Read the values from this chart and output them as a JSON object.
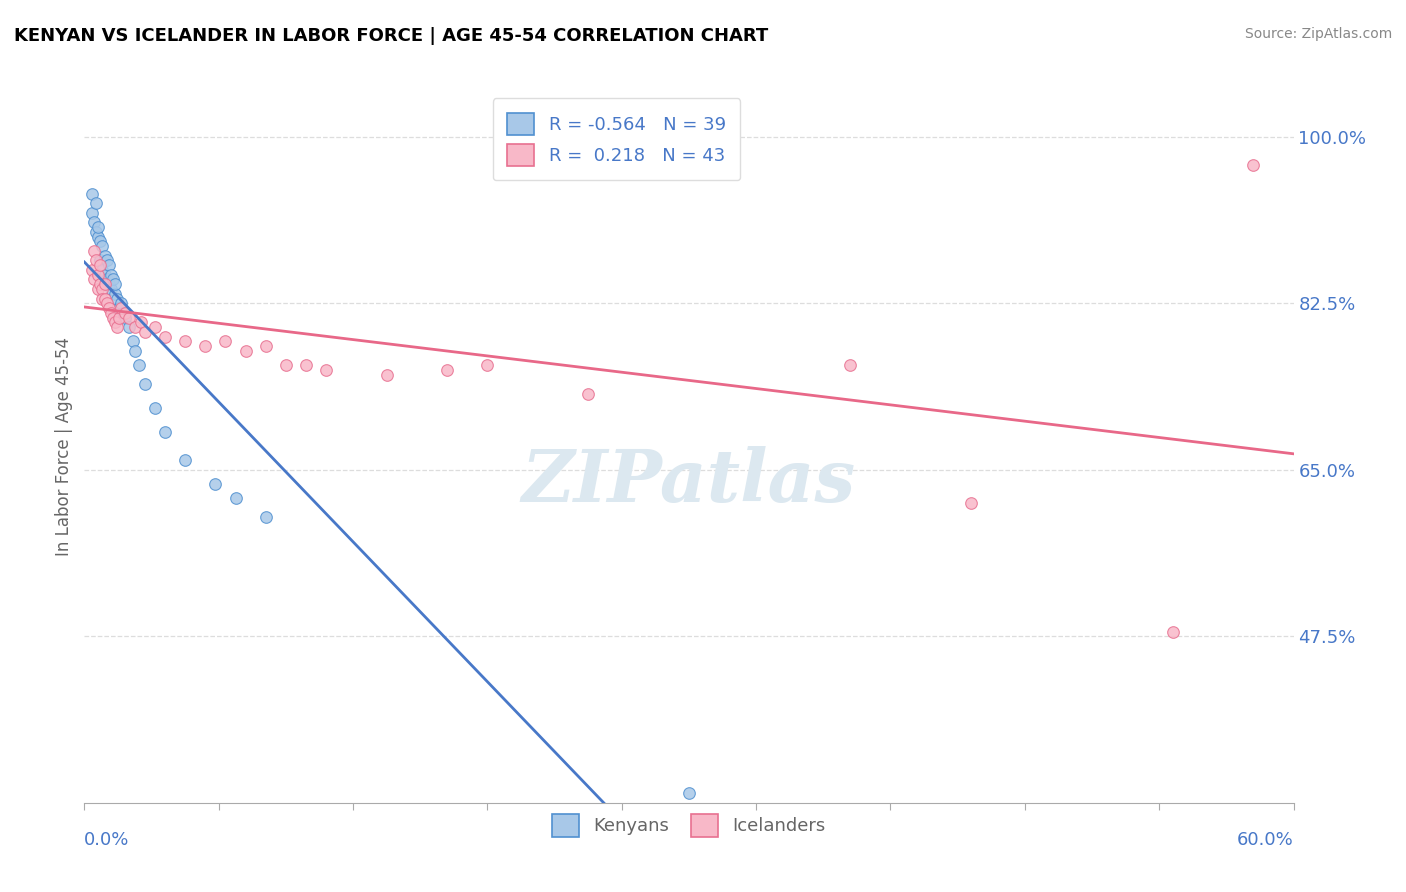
{
  "title": "KENYAN VS ICELANDER IN LABOR FORCE | AGE 45-54 CORRELATION CHART",
  "source": "Source: ZipAtlas.com",
  "ylabel": "In Labor Force | Age 45-54",
  "yticks": [
    "47.5%",
    "65.0%",
    "82.5%",
    "100.0%"
  ],
  "ytick_vals": [
    0.475,
    0.65,
    0.825,
    1.0
  ],
  "xlim": [
    0.0,
    0.6
  ],
  "ylim": [
    0.3,
    1.05
  ],
  "legend_r_kenyan": "-0.564",
  "legend_n_kenyan": "39",
  "legend_r_icelander": "0.218",
  "legend_n_icelander": "43",
  "kenyan_color": "#a8c8e8",
  "icelander_color": "#f8b8c8",
  "kenyan_edge_color": "#5090d0",
  "icelander_edge_color": "#e87090",
  "kenyan_line_color": "#4878c8",
  "icelander_line_color": "#e86888",
  "trend_dash_color": "#c0c8d8",
  "kenyan_x": [
    0.004,
    0.004,
    0.005,
    0.006,
    0.006,
    0.007,
    0.007,
    0.008,
    0.008,
    0.009,
    0.009,
    0.01,
    0.01,
    0.011,
    0.011,
    0.012,
    0.012,
    0.013,
    0.013,
    0.014,
    0.015,
    0.015,
    0.016,
    0.017,
    0.018,
    0.019,
    0.02,
    0.022,
    0.024,
    0.025,
    0.027,
    0.03,
    0.035,
    0.04,
    0.05,
    0.065,
    0.075,
    0.09,
    0.3
  ],
  "kenyan_y": [
    0.94,
    0.92,
    0.91,
    0.93,
    0.9,
    0.895,
    0.905,
    0.89,
    0.87,
    0.885,
    0.86,
    0.875,
    0.855,
    0.87,
    0.85,
    0.865,
    0.845,
    0.855,
    0.84,
    0.85,
    0.835,
    0.845,
    0.83,
    0.82,
    0.825,
    0.815,
    0.81,
    0.8,
    0.785,
    0.775,
    0.76,
    0.74,
    0.715,
    0.69,
    0.66,
    0.635,
    0.62,
    0.6,
    0.31
  ],
  "icelander_x": [
    0.004,
    0.005,
    0.005,
    0.006,
    0.007,
    0.007,
    0.008,
    0.008,
    0.009,
    0.009,
    0.01,
    0.01,
    0.011,
    0.012,
    0.013,
    0.014,
    0.015,
    0.016,
    0.017,
    0.018,
    0.02,
    0.022,
    0.025,
    0.028,
    0.03,
    0.035,
    0.04,
    0.05,
    0.06,
    0.07,
    0.08,
    0.09,
    0.1,
    0.11,
    0.12,
    0.15,
    0.18,
    0.2,
    0.25,
    0.38,
    0.44,
    0.54,
    0.58
  ],
  "icelander_y": [
    0.86,
    0.88,
    0.85,
    0.87,
    0.855,
    0.84,
    0.865,
    0.845,
    0.84,
    0.83,
    0.845,
    0.83,
    0.825,
    0.82,
    0.815,
    0.81,
    0.805,
    0.8,
    0.81,
    0.82,
    0.815,
    0.81,
    0.8,
    0.805,
    0.795,
    0.8,
    0.79,
    0.785,
    0.78,
    0.785,
    0.775,
    0.78,
    0.76,
    0.76,
    0.755,
    0.75,
    0.755,
    0.76,
    0.73,
    0.76,
    0.615,
    0.48,
    0.97
  ],
  "kenyan_trend": [
    -2.1,
    0.895
  ],
  "icelander_trend": [
    0.25,
    0.79
  ]
}
